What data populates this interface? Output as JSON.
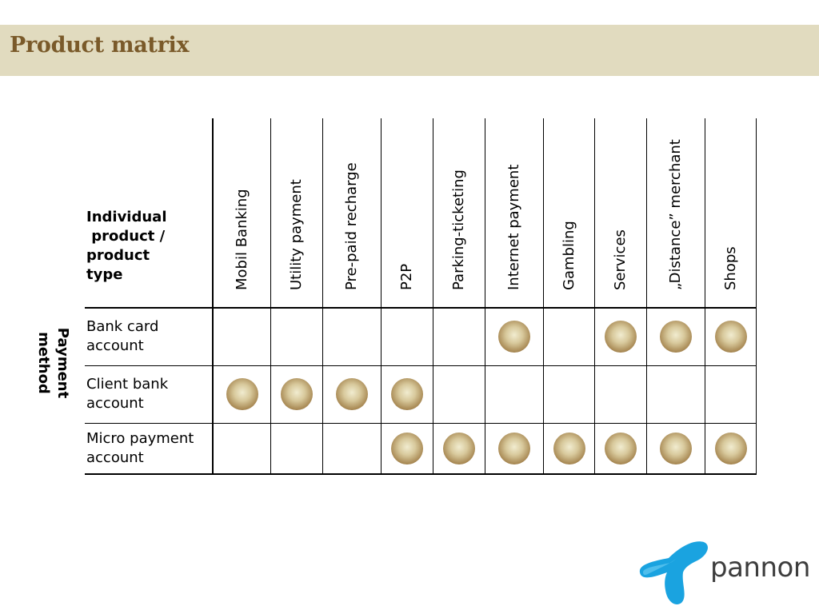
{
  "title": "Product matrix",
  "axis_label": "Payment\nmethod",
  "corner_label": "Individual\n product /\nproduct\ntype",
  "columns": [
    "Mobil Banking",
    "Utility payment",
    "Pre-paid recharge",
    "P2P",
    "Parking-ticketing",
    "Internet payment",
    "Gambling",
    "Services",
    "„Distance” merchant",
    "Shops"
  ],
  "rows": [
    {
      "label": "Bank card\naccount",
      "marks": [
        false,
        false,
        false,
        false,
        false,
        true,
        false,
        true,
        true,
        true
      ]
    },
    {
      "label": "Client bank\naccount",
      "marks": [
        true,
        true,
        true,
        true,
        false,
        false,
        false,
        false,
        false,
        false
      ]
    },
    {
      "label": "Micro payment\naccount",
      "marks": [
        false,
        false,
        false,
        true,
        true,
        true,
        true,
        true,
        true,
        true
      ]
    }
  ],
  "logo": {
    "name": "pannon-logo-icon",
    "text": "pannon"
  },
  "colors": {
    "title": "#7a5a2a",
    "title_bar": "#e1dbbf",
    "logo_blue": "#1aa3e0"
  }
}
